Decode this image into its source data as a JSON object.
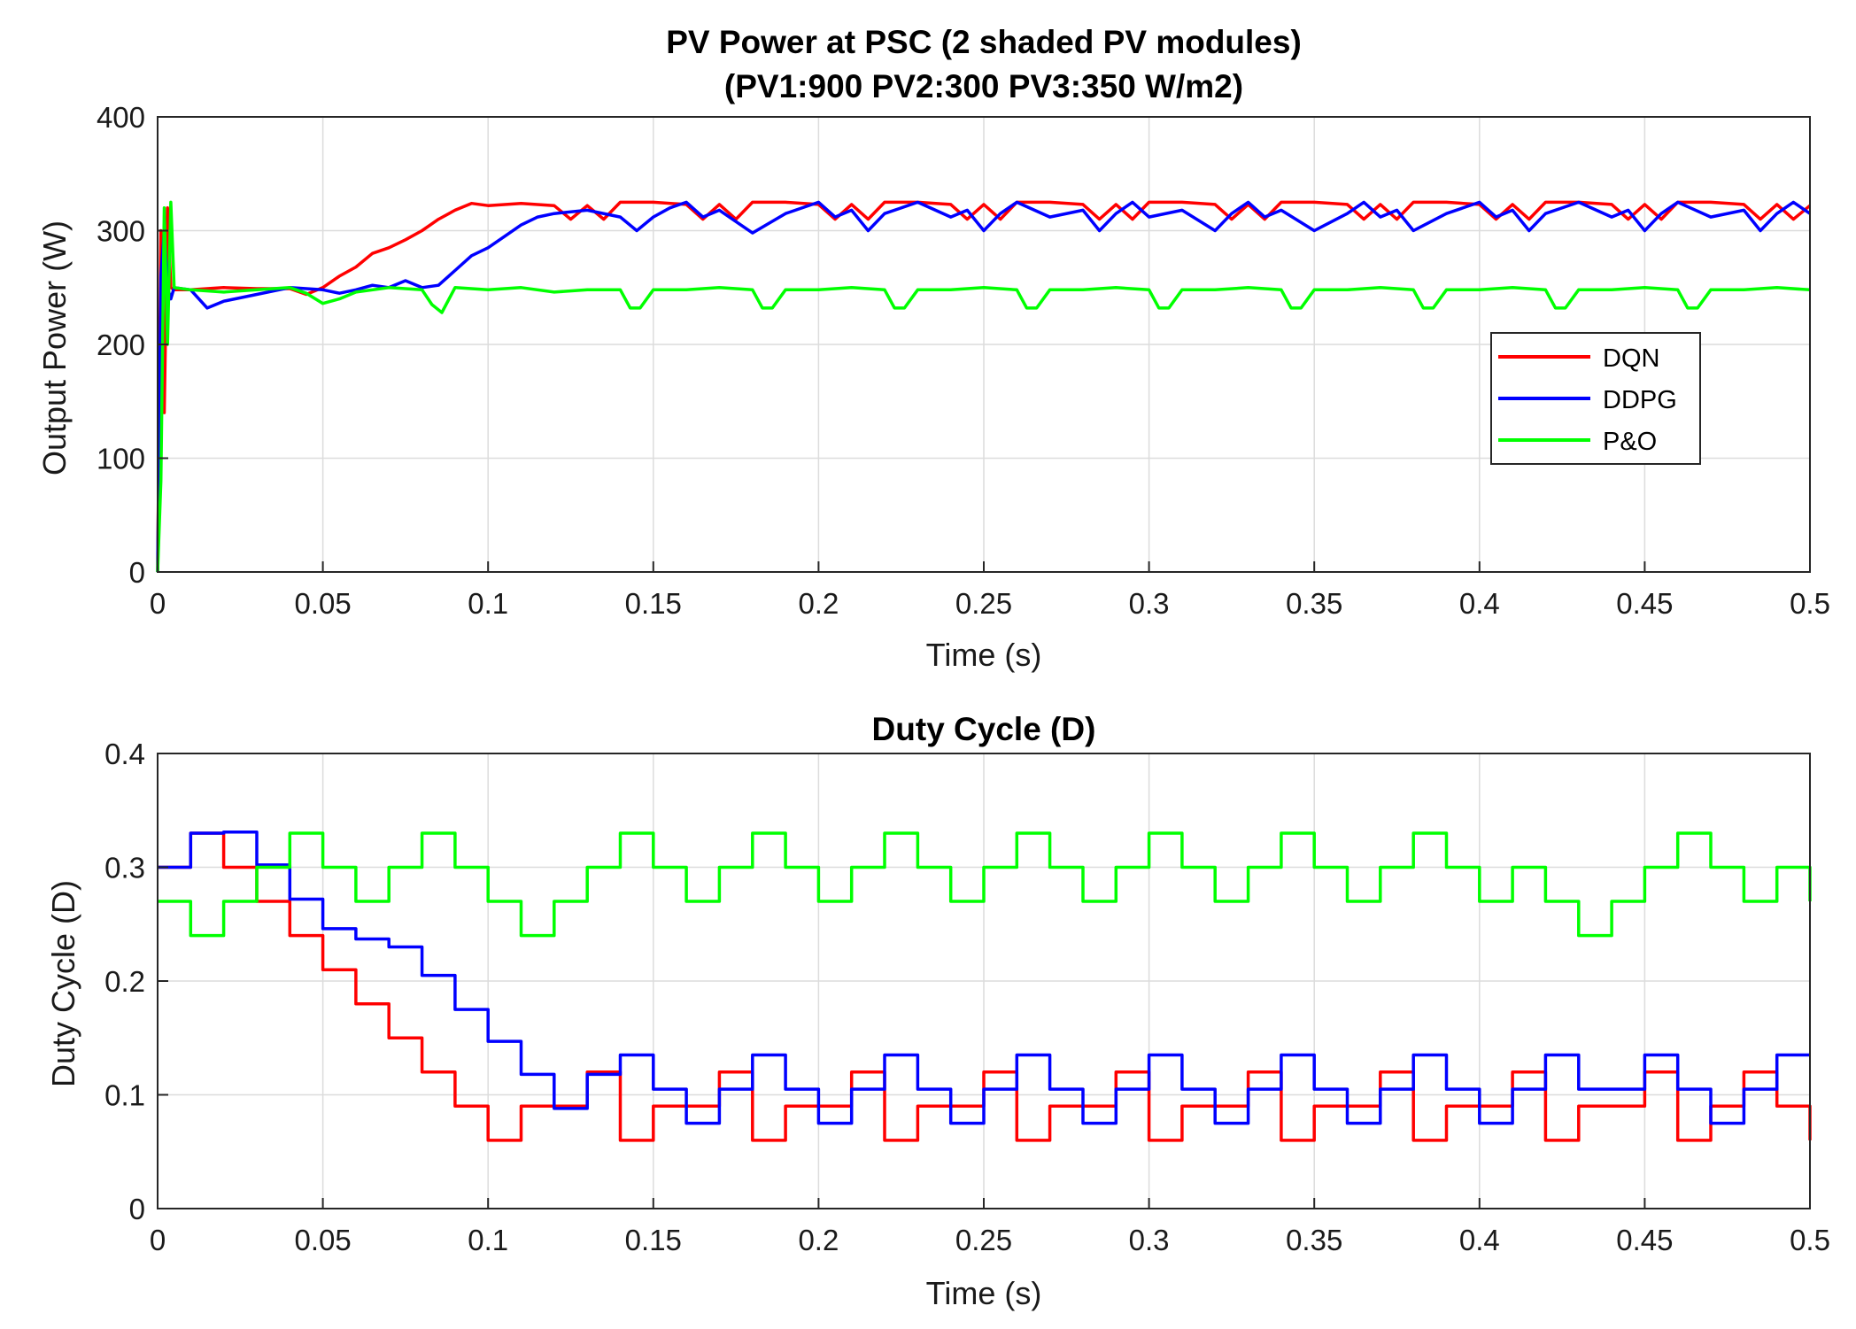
{
  "chart_data": [
    {
      "type": "line",
      "title": [
        "PV Power at PSC (2 shaded PV modules)",
        "(PV1:900 PV2:300 PV3:350 W/m2)"
      ],
      "xlabel": "Time (s)",
      "ylabel": "Output Power (W)",
      "xlim": [
        0,
        0.5
      ],
      "ylim": [
        0,
        400
      ],
      "xticks": [
        0,
        0.05,
        0.1,
        0.15,
        0.2,
        0.25,
        0.3,
        0.35,
        0.4,
        0.45,
        0.5
      ],
      "xtick_labels": [
        "0",
        "0.05",
        "0.1",
        "0.15",
        "0.2",
        "0.25",
        "0.3",
        "0.35",
        "0.4",
        "0.45",
        "0.5"
      ],
      "yticks": [
        0,
        100,
        200,
        300,
        400
      ],
      "ytick_labels": [
        "0",
        "100",
        "200",
        "300",
        "400"
      ],
      "grid": true,
      "legend": "right",
      "series": [
        {
          "name": "DQN",
          "color": "#ff0000",
          "x": [
            0,
            0.001,
            0.002,
            0.003,
            0.004,
            0.005,
            0.01,
            0.02,
            0.03,
            0.04,
            0.045,
            0.05,
            0.055,
            0.06,
            0.065,
            0.07,
            0.075,
            0.08,
            0.085,
            0.09,
            0.095,
            0.1,
            0.11,
            0.12,
            0.125,
            0.13,
            0.135,
            0.14,
            0.15,
            0.16,
            0.165,
            0.17,
            0.175,
            0.18,
            0.19,
            0.2,
            0.205,
            0.21,
            0.215,
            0.22,
            0.23,
            0.24,
            0.245,
            0.25,
            0.255,
            0.26,
            0.27,
            0.28,
            0.285,
            0.29,
            0.295,
            0.3,
            0.31,
            0.32,
            0.325,
            0.33,
            0.335,
            0.34,
            0.35,
            0.36,
            0.365,
            0.37,
            0.375,
            0.38,
            0.39,
            0.4,
            0.405,
            0.41,
            0.415,
            0.42,
            0.43,
            0.44,
            0.445,
            0.45,
            0.455,
            0.46,
            0.47,
            0.48,
            0.485,
            0.49,
            0.495,
            0.5
          ],
          "values": [
            0,
            300,
            140,
            320,
            250,
            248,
            248,
            250,
            249,
            249,
            244,
            250,
            260,
            268,
            280,
            285,
            292,
            300,
            310,
            318,
            324,
            322,
            324,
            322,
            310,
            322,
            310,
            325,
            325,
            323,
            310,
            323,
            310,
            325,
            325,
            323,
            310,
            323,
            310,
            325,
            325,
            323,
            310,
            323,
            310,
            325,
            325,
            323,
            310,
            323,
            310,
            325,
            325,
            323,
            310,
            323,
            310,
            325,
            325,
            323,
            310,
            323,
            310,
            325,
            325,
            323,
            310,
            323,
            310,
            325,
            325,
            323,
            310,
            323,
            310,
            325,
            325,
            323,
            310,
            323,
            310,
            322
          ]
        },
        {
          "name": "DDPG",
          "color": "#0000ff",
          "x": [
            0,
            0.001,
            0.002,
            0.003,
            0.004,
            0.005,
            0.01,
            0.015,
            0.02,
            0.03,
            0.04,
            0.05,
            0.055,
            0.06,
            0.065,
            0.07,
            0.075,
            0.08,
            0.085,
            0.09,
            0.095,
            0.1,
            0.105,
            0.11,
            0.115,
            0.12,
            0.13,
            0.14,
            0.145,
            0.15,
            0.155,
            0.16,
            0.165,
            0.17,
            0.18,
            0.19,
            0.2,
            0.205,
            0.21,
            0.215,
            0.22,
            0.23,
            0.24,
            0.245,
            0.25,
            0.255,
            0.26,
            0.27,
            0.28,
            0.285,
            0.29,
            0.295,
            0.3,
            0.31,
            0.32,
            0.325,
            0.33,
            0.335,
            0.34,
            0.35,
            0.36,
            0.365,
            0.37,
            0.375,
            0.38,
            0.39,
            0.4,
            0.405,
            0.41,
            0.415,
            0.42,
            0.43,
            0.44,
            0.445,
            0.45,
            0.455,
            0.46,
            0.47,
            0.48,
            0.485,
            0.49,
            0.495,
            0.5
          ],
          "values": [
            0,
            260,
            300,
            250,
            240,
            250,
            248,
            232,
            238,
            244,
            250,
            248,
            245,
            248,
            252,
            250,
            256,
            250,
            252,
            265,
            278,
            285,
            295,
            305,
            312,
            315,
            318,
            312,
            300,
            312,
            320,
            325,
            312,
            318,
            298,
            315,
            325,
            312,
            318,
            300,
            315,
            325,
            312,
            318,
            300,
            315,
            325,
            312,
            318,
            300,
            315,
            325,
            312,
            318,
            300,
            315,
            325,
            312,
            318,
            300,
            315,
            325,
            312,
            318,
            300,
            315,
            325,
            312,
            318,
            300,
            315,
            325,
            312,
            318,
            300,
            315,
            325,
            312,
            318,
            300,
            315,
            325,
            315
          ]
        },
        {
          "name": "P&O",
          "color": "#00ff00",
          "x": [
            0,
            0.001,
            0.002,
            0.003,
            0.004,
            0.005,
            0.01,
            0.02,
            0.03,
            0.04,
            0.045,
            0.05,
            0.055,
            0.06,
            0.07,
            0.08,
            0.083,
            0.086,
            0.09,
            0.1,
            0.11,
            0.12,
            0.13,
            0.14,
            0.143,
            0.146,
            0.15,
            0.16,
            0.17,
            0.18,
            0.183,
            0.186,
            0.19,
            0.2,
            0.21,
            0.22,
            0.223,
            0.226,
            0.23,
            0.24,
            0.25,
            0.26,
            0.263,
            0.266,
            0.27,
            0.28,
            0.29,
            0.3,
            0.303,
            0.306,
            0.31,
            0.32,
            0.33,
            0.34,
            0.343,
            0.346,
            0.35,
            0.36,
            0.37,
            0.38,
            0.383,
            0.386,
            0.39,
            0.4,
            0.41,
            0.42,
            0.423,
            0.426,
            0.43,
            0.44,
            0.45,
            0.46,
            0.463,
            0.466,
            0.47,
            0.48,
            0.49,
            0.5
          ],
          "values": [
            0,
            80,
            320,
            200,
            325,
            250,
            248,
            246,
            248,
            250,
            245,
            236,
            240,
            246,
            250,
            248,
            235,
            228,
            250,
            248,
            250,
            246,
            248,
            248,
            232,
            232,
            248,
            248,
            250,
            248,
            232,
            232,
            248,
            248,
            250,
            248,
            232,
            232,
            248,
            248,
            250,
            248,
            232,
            232,
            248,
            248,
            250,
            248,
            232,
            232,
            248,
            248,
            250,
            248,
            232,
            232,
            248,
            248,
            250,
            248,
            232,
            232,
            248,
            248,
            250,
            248,
            232,
            232,
            248,
            248,
            250,
            248,
            232,
            232,
            248,
            248,
            250,
            248
          ]
        }
      ]
    },
    {
      "type": "line",
      "title": [
        "Duty Cycle (D)"
      ],
      "xlabel": "Time (s)",
      "ylabel": "Duty Cycle (D)",
      "xlim": [
        0,
        0.5
      ],
      "ylim": [
        0,
        0.4
      ],
      "xticks": [
        0,
        0.05,
        0.1,
        0.15,
        0.2,
        0.25,
        0.3,
        0.35,
        0.4,
        0.45,
        0.5
      ],
      "xtick_labels": [
        "0",
        "0.05",
        "0.1",
        "0.15",
        "0.2",
        "0.25",
        "0.3",
        "0.35",
        "0.4",
        "0.45",
        "0.5"
      ],
      "yticks": [
        0,
        0.1,
        0.2,
        0.3,
        0.4
      ],
      "ytick_labels": [
        "0",
        "0.1",
        "0.2",
        "0.3",
        "0.4"
      ],
      "grid": true,
      "step": true,
      "series": [
        {
          "name": "DQN",
          "color": "#ff0000",
          "x": [
            0,
            0.01,
            0.02,
            0.03,
            0.04,
            0.05,
            0.06,
            0.07,
            0.08,
            0.09,
            0.1,
            0.11,
            0.12,
            0.13,
            0.14,
            0.15,
            0.16,
            0.17,
            0.18,
            0.19,
            0.2,
            0.21,
            0.22,
            0.23,
            0.24,
            0.25,
            0.26,
            0.27,
            0.28,
            0.29,
            0.3,
            0.31,
            0.32,
            0.33,
            0.34,
            0.35,
            0.36,
            0.37,
            0.38,
            0.39,
            0.4,
            0.41,
            0.42,
            0.43,
            0.44,
            0.45,
            0.46,
            0.47,
            0.48,
            0.49,
            0.5
          ],
          "values": [
            0.3,
            0.33,
            0.3,
            0.27,
            0.24,
            0.21,
            0.18,
            0.15,
            0.12,
            0.09,
            0.06,
            0.09,
            0.09,
            0.12,
            0.06,
            0.09,
            0.09,
            0.12,
            0.06,
            0.09,
            0.09,
            0.12,
            0.06,
            0.09,
            0.09,
            0.12,
            0.06,
            0.09,
            0.09,
            0.12,
            0.06,
            0.09,
            0.09,
            0.12,
            0.06,
            0.09,
            0.09,
            0.12,
            0.06,
            0.09,
            0.09,
            0.12,
            0.06,
            0.09,
            0.09,
            0.12,
            0.06,
            0.09,
            0.12,
            0.09,
            0.06
          ]
        },
        {
          "name": "DDPG",
          "color": "#0000ff",
          "x": [
            0,
            0.01,
            0.02,
            0.03,
            0.04,
            0.05,
            0.06,
            0.07,
            0.08,
            0.09,
            0.1,
            0.11,
            0.12,
            0.13,
            0.14,
            0.15,
            0.16,
            0.17,
            0.18,
            0.19,
            0.2,
            0.21,
            0.22,
            0.23,
            0.24,
            0.25,
            0.26,
            0.27,
            0.28,
            0.29,
            0.3,
            0.31,
            0.32,
            0.33,
            0.34,
            0.35,
            0.36,
            0.37,
            0.38,
            0.39,
            0.4,
            0.41,
            0.42,
            0.43,
            0.44,
            0.45,
            0.46,
            0.47,
            0.48,
            0.49,
            0.5
          ],
          "values": [
            0.3,
            0.33,
            0.331,
            0.302,
            0.272,
            0.246,
            0.237,
            0.23,
            0.205,
            0.175,
            0.147,
            0.118,
            0.088,
            0.118,
            0.135,
            0.105,
            0.075,
            0.105,
            0.135,
            0.105,
            0.075,
            0.105,
            0.135,
            0.105,
            0.075,
            0.105,
            0.135,
            0.105,
            0.075,
            0.105,
            0.135,
            0.105,
            0.075,
            0.105,
            0.135,
            0.105,
            0.075,
            0.105,
            0.135,
            0.105,
            0.075,
            0.105,
            0.135,
            0.105,
            0.105,
            0.135,
            0.105,
            0.075,
            0.105,
            0.135,
            0.135
          ]
        },
        {
          "name": "P&O",
          "color": "#00ff00",
          "x": [
            0,
            0.01,
            0.02,
            0.03,
            0.04,
            0.05,
            0.06,
            0.07,
            0.08,
            0.09,
            0.1,
            0.11,
            0.12,
            0.13,
            0.14,
            0.15,
            0.16,
            0.17,
            0.18,
            0.19,
            0.2,
            0.21,
            0.22,
            0.23,
            0.24,
            0.25,
            0.26,
            0.27,
            0.28,
            0.29,
            0.3,
            0.31,
            0.32,
            0.33,
            0.34,
            0.35,
            0.36,
            0.37,
            0.38,
            0.39,
            0.4,
            0.41,
            0.42,
            0.43,
            0.44,
            0.45,
            0.46,
            0.47,
            0.48,
            0.49,
            0.5
          ],
          "values": [
            0.27,
            0.24,
            0.27,
            0.3,
            0.33,
            0.3,
            0.27,
            0.3,
            0.33,
            0.3,
            0.27,
            0.24,
            0.27,
            0.3,
            0.33,
            0.3,
            0.27,
            0.3,
            0.33,
            0.3,
            0.27,
            0.3,
            0.33,
            0.3,
            0.27,
            0.3,
            0.33,
            0.3,
            0.27,
            0.3,
            0.33,
            0.3,
            0.27,
            0.3,
            0.33,
            0.3,
            0.27,
            0.3,
            0.33,
            0.3,
            0.27,
            0.3,
            0.27,
            0.24,
            0.27,
            0.3,
            0.33,
            0.3,
            0.27,
            0.3,
            0.27
          ]
        }
      ]
    }
  ]
}
